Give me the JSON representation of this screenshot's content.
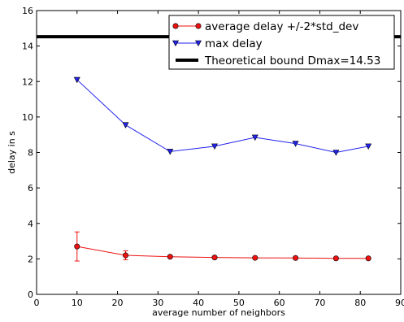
{
  "chart_data": {
    "type": "line",
    "title": "",
    "xlabel": "average number of neighbors",
    "ylabel": "delay in s",
    "xlim": [
      0,
      90
    ],
    "ylim": [
      0,
      16
    ],
    "xticks": [
      0,
      10,
      20,
      30,
      40,
      50,
      60,
      70,
      80,
      90
    ],
    "yticks": [
      0,
      2,
      4,
      6,
      8,
      10,
      12,
      14,
      16
    ],
    "grid": false,
    "legend_position": "top-right",
    "series": [
      {
        "name": "average delay +/-2*std_dev",
        "color": "#ee1111",
        "marker": "circle",
        "x": [
          10,
          22,
          33,
          44,
          54,
          64,
          74,
          82
        ],
        "y": [
          2.7,
          2.2,
          2.12,
          2.08,
          2.06,
          2.05,
          2.03,
          2.03
        ],
        "error": [
          0.82,
          0.25,
          0.05,
          0.04,
          0.04,
          0.04,
          0.04,
          0.04
        ]
      },
      {
        "name": "max delay",
        "color": "#2222ee",
        "marker": "triangle-down",
        "x": [
          10,
          22,
          33,
          44,
          54,
          64,
          74,
          82
        ],
        "y": [
          12.1,
          9.55,
          8.05,
          8.35,
          8.85,
          8.5,
          8.0,
          8.35
        ]
      },
      {
        "name": "Theoretical bound Dmax=14.53",
        "color": "#000000",
        "marker": "none",
        "x": [
          0,
          90
        ],
        "y": [
          14.53,
          14.53
        ]
      }
    ]
  }
}
